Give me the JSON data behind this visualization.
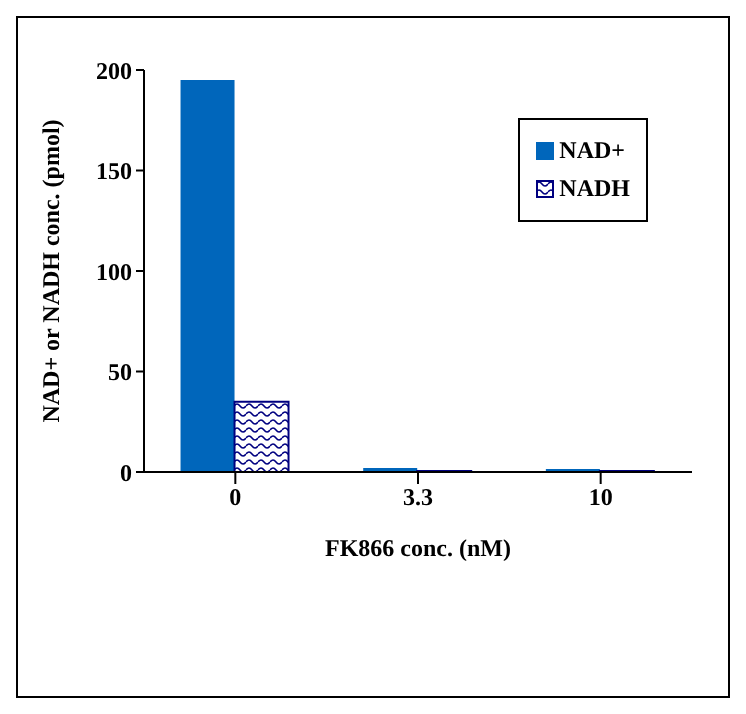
{
  "chart_data": {
    "type": "bar",
    "xlabel": "FK866 conc. (nM)",
    "ylabel": "NAD+ or NADH conc. (pmol)",
    "categories": [
      "0",
      "3.3",
      "10"
    ],
    "series": [
      {
        "name": "NAD+",
        "color": "#0066bb",
        "values": [
          195,
          2,
          1.5
        ]
      },
      {
        "name": "NADH",
        "color": "#000080",
        "values": [
          35,
          0.5,
          0.5
        ]
      }
    ],
    "ylim": [
      0,
      200
    ],
    "yticks": [
      0,
      50,
      100,
      150,
      200
    ],
    "grid": false,
    "legend": "top right"
  }
}
